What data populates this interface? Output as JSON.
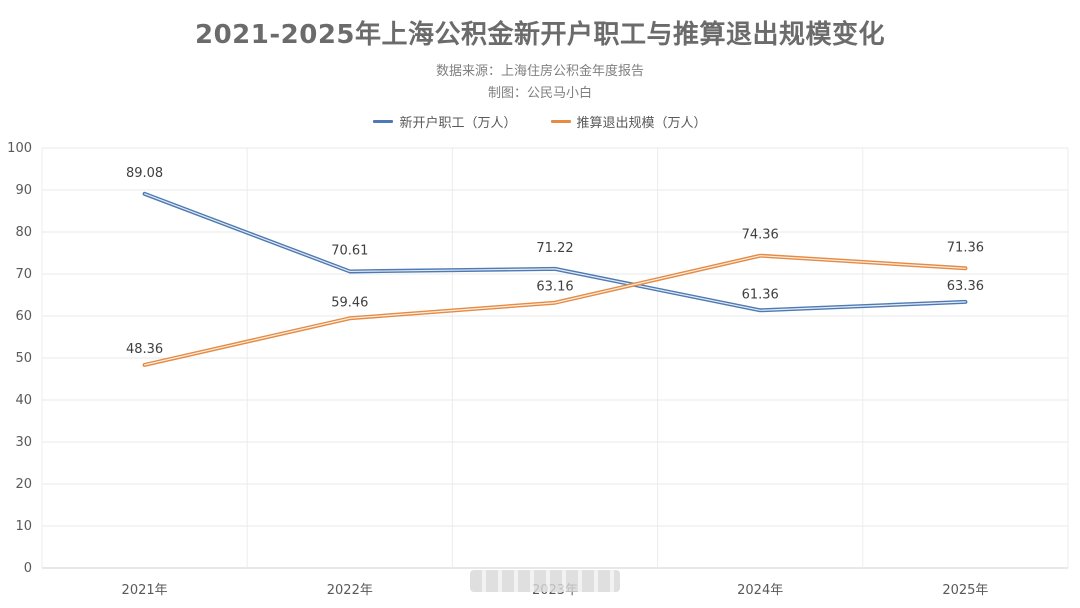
{
  "chart_data": {
    "type": "line",
    "title": "2021-2025年上海公积金新开户职工与推算退出规模变化",
    "subtitle_lines": [
      "数据来源：上海住房公积金年度报告",
      "制图：公民马小白"
    ],
    "categories": [
      "2021年",
      "2022年",
      "2023年",
      "2024年",
      "2025年"
    ],
    "series": [
      {
        "name": "新开户职工（万人）",
        "color": "#4e7ab3",
        "values": [
          89.08,
          70.61,
          71.22,
          61.36,
          63.36
        ]
      },
      {
        "name": "推算退出规模（万人）",
        "color": "#e58b43",
        "values": [
          48.36,
          59.46,
          63.16,
          74.36,
          71.36
        ]
      }
    ],
    "ylim": [
      0,
      100
    ],
    "yticks": [
      0,
      10,
      20,
      30,
      40,
      50,
      60,
      70,
      80,
      90,
      100
    ],
    "grid": true,
    "legend_position": "top-center"
  }
}
